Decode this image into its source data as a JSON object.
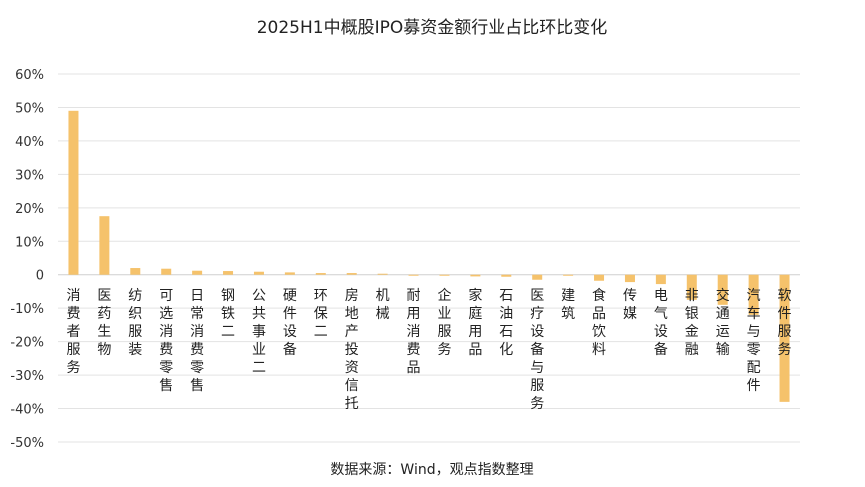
{
  "chart_data": {
    "type": "bar",
    "title": "2025H1中概股IPO募资金额行业占比环比变化",
    "source": "数据来源：Wind，观点指数整理",
    "color": "#F5C26B",
    "ylim": [
      -0.5,
      0.6
    ],
    "yticks": [
      0.6,
      0.5,
      0.4,
      0.3,
      0.2,
      0.1,
      0.0,
      -0.1,
      -0.2,
      -0.3,
      -0.4,
      -0.5
    ],
    "ytick_labels": [
      "60%",
      "50%",
      "40%",
      "30%",
      "20%",
      "10%",
      "0",
      "-10%",
      "-20%",
      "-30%",
      "-40%",
      "-50%"
    ],
    "grid": true,
    "legend": "none",
    "categories": [
      "消费者服务",
      "医药生物",
      "纺织服装",
      "可选消费零售",
      "日常消费零售",
      "钢铁二",
      "公共事业二",
      "硬件设备",
      "环保二",
      "房地产投资信托",
      "机械",
      "耐用消费品",
      "企业服务",
      "家庭用品",
      "石油石化",
      "医疗设备与服务",
      "建筑",
      "食品饮料",
      "传媒",
      "电气设备",
      "非银金融",
      "交通运输",
      "汽车与零配件",
      "软件服务"
    ],
    "values": [
      0.49,
      0.175,
      0.02,
      0.018,
      0.012,
      0.011,
      0.009,
      0.007,
      0.005,
      0.005,
      0.0,
      -0.002,
      -0.003,
      -0.005,
      -0.006,
      -0.015,
      -0.003,
      -0.018,
      -0.022,
      -0.028,
      -0.075,
      -0.09,
      -0.12,
      -0.38
    ]
  }
}
